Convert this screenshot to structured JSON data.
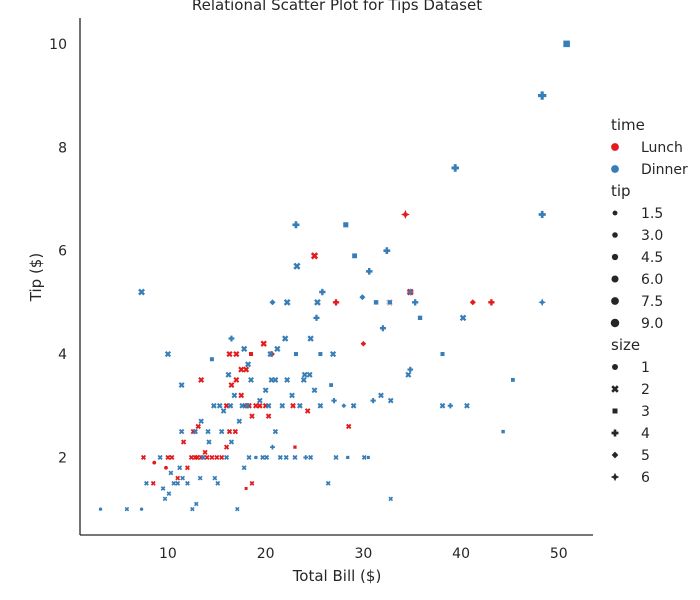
{
  "chart_data": {
    "type": "scatter",
    "title": "Relational Scatter Plot for Tips Dataset",
    "xlabel": "Total Bill ($)",
    "ylabel": "Tip ($)",
    "xlim": [
      1.0,
      53.5
    ],
    "ylim": [
      0.5,
      10.5
    ],
    "x_ticks": [
      10,
      20,
      30,
      40,
      50
    ],
    "y_ticks": [
      2,
      4,
      6,
      8,
      10
    ],
    "grid": false,
    "legend_position": "right",
    "colors": {
      "Lunch": "#e41a1c",
      "Dinner": "#377eb8"
    },
    "legend": {
      "hue_title": "time",
      "hue_entries": [
        "Lunch",
        "Dinner"
      ],
      "size_title": "tip",
      "size_entries": [
        "1.5",
        "3.0",
        "4.5",
        "6.0",
        "7.5",
        "9.0"
      ],
      "style_title": "size",
      "style_entries": [
        "1",
        "2",
        "3",
        "4",
        "5",
        "6"
      ]
    },
    "size_markers": {
      "1": "circle",
      "2": "x",
      "3": "square",
      "4": "plus",
      "5": "diamond",
      "6": "star"
    },
    "series": [
      {
        "name": "Lunch",
        "points": [
          [
            8.5,
            1.5,
            2
          ],
          [
            8.6,
            1.9,
            1
          ],
          [
            9.8,
            1.8,
            1
          ],
          [
            7.5,
            2.0,
            2
          ],
          [
            10.0,
            2.0,
            2
          ],
          [
            10.4,
            2.0,
            2
          ],
          [
            11.0,
            1.6,
            2
          ],
          [
            11.6,
            2.3,
            2
          ],
          [
            12.0,
            1.8,
            2
          ],
          [
            12.4,
            2.0,
            2
          ],
          [
            12.8,
            2.0,
            2
          ],
          [
            13.0,
            2.0,
            2
          ],
          [
            13.4,
            2.0,
            2
          ],
          [
            13.8,
            2.1,
            2
          ],
          [
            14.0,
            2.0,
            2
          ],
          [
            14.5,
            2.0,
            2
          ],
          [
            15.0,
            2.0,
            2
          ],
          [
            15.5,
            2.0,
            2
          ],
          [
            16.0,
            2.2,
            2
          ],
          [
            16.3,
            2.5,
            2
          ],
          [
            16.0,
            3.0,
            2
          ],
          [
            16.5,
            3.4,
            2
          ],
          [
            17.0,
            3.5,
            2
          ],
          [
            17.5,
            3.2,
            2
          ],
          [
            17.9,
            3.0,
            2
          ],
          [
            18.3,
            3.0,
            2
          ],
          [
            18.6,
            2.8,
            2
          ],
          [
            19.0,
            3.0,
            2
          ],
          [
            19.4,
            3.0,
            2
          ],
          [
            20.0,
            3.0,
            2
          ],
          [
            20.3,
            2.8,
            2
          ],
          [
            16.3,
            4.0,
            2
          ],
          [
            17.0,
            4.0,
            2
          ],
          [
            17.5,
            3.7,
            2
          ],
          [
            18.0,
            3.7,
            2
          ],
          [
            18.5,
            4.0,
            3
          ],
          [
            19.8,
            4.2,
            2
          ],
          [
            20.6,
            4.0,
            4
          ],
          [
            13.4,
            3.5,
            2
          ],
          [
            12.6,
            2.5,
            2
          ],
          [
            18.0,
            1.4,
            3
          ],
          [
            18.6,
            1.5,
            2
          ],
          [
            22.8,
            3.0,
            2
          ],
          [
            24.3,
            2.9,
            2
          ],
          [
            23.0,
            2.2,
            3
          ],
          [
            25.0,
            5.9,
            2
          ],
          [
            27.2,
            5.0,
            4
          ],
          [
            28.5,
            2.6,
            2
          ],
          [
            30.0,
            4.2,
            5
          ],
          [
            32.7,
            5.0,
            2
          ],
          [
            34.3,
            6.7,
            6
          ],
          [
            34.8,
            5.2,
            2
          ],
          [
            41.2,
            5.0,
            5
          ],
          [
            43.1,
            5.0,
            4
          ],
          [
            16.9,
            2.5,
            2
          ],
          [
            13.1,
            2.6,
            2
          ]
        ]
      },
      {
        "name": "Dinner",
        "points": [
          [
            3.1,
            1.0,
            1
          ],
          [
            5.8,
            1.0,
            2
          ],
          [
            7.3,
            1.0,
            1
          ],
          [
            7.8,
            1.5,
            2
          ],
          [
            9.5,
            1.4,
            2
          ],
          [
            9.7,
            1.2,
            2
          ],
          [
            10.1,
            1.3,
            2
          ],
          [
            10.3,
            1.7,
            2
          ],
          [
            10.6,
            1.5,
            2
          ],
          [
            11.0,
            1.5,
            2
          ],
          [
            11.2,
            1.8,
            2
          ],
          [
            11.5,
            1.6,
            2
          ],
          [
            12.0,
            1.5,
            2
          ],
          [
            12.5,
            1.0,
            2
          ],
          [
            12.9,
            1.1,
            2
          ],
          [
            13.3,
            1.6,
            2
          ],
          [
            13.6,
            2.0,
            2
          ],
          [
            14.2,
            2.3,
            2
          ],
          [
            14.8,
            1.6,
            2
          ],
          [
            15.1,
            1.5,
            2
          ],
          [
            15.5,
            2.5,
            2
          ],
          [
            16.0,
            2.0,
            2
          ],
          [
            16.5,
            2.3,
            2
          ],
          [
            17.1,
            1.0,
            2
          ],
          [
            17.8,
            1.8,
            2
          ],
          [
            18.3,
            2.0,
            2
          ],
          [
            19.0,
            2.0,
            3
          ],
          [
            19.7,
            2.0,
            2
          ],
          [
            20.1,
            2.0,
            2
          ],
          [
            20.7,
            2.2,
            4
          ],
          [
            21.0,
            2.5,
            2
          ],
          [
            21.5,
            2.0,
            2
          ],
          [
            22.1,
            2.0,
            2
          ],
          [
            23.0,
            2.0,
            2
          ],
          [
            24.1,
            2.0,
            4
          ],
          [
            24.6,
            2.0,
            2
          ],
          [
            26.4,
            1.5,
            2
          ],
          [
            27.2,
            2.0,
            2
          ],
          [
            28.4,
            2.0,
            3
          ],
          [
            30.1,
            2.0,
            2
          ],
          [
            30.5,
            2.0,
            3
          ],
          [
            32.8,
            1.2,
            2
          ],
          [
            9.2,
            2.0,
            2
          ],
          [
            11.4,
            2.5,
            2
          ],
          [
            12.8,
            2.5,
            2
          ],
          [
            13.4,
            2.7,
            2
          ],
          [
            14.1,
            2.5,
            2
          ],
          [
            14.7,
            3.0,
            2
          ],
          [
            15.3,
            3.0,
            2
          ],
          [
            15.7,
            2.9,
            2
          ],
          [
            16.4,
            3.0,
            2
          ],
          [
            16.8,
            3.2,
            2
          ],
          [
            17.3,
            2.7,
            2
          ],
          [
            17.6,
            3.0,
            2
          ],
          [
            18.1,
            3.0,
            2
          ],
          [
            18.5,
            3.5,
            2
          ],
          [
            19.4,
            3.1,
            2
          ],
          [
            20.0,
            3.3,
            2
          ],
          [
            20.3,
            3.0,
            2
          ],
          [
            20.6,
            3.5,
            2
          ],
          [
            21.0,
            3.5,
            2
          ],
          [
            21.7,
            3.0,
            2
          ],
          [
            22.2,
            3.5,
            2
          ],
          [
            22.7,
            3.2,
            2
          ],
          [
            23.5,
            3.0,
            2
          ],
          [
            23.9,
            3.5,
            2
          ],
          [
            24.5,
            3.6,
            2
          ],
          [
            25.0,
            3.3,
            2
          ],
          [
            25.6,
            3.0,
            2
          ],
          [
            26.7,
            3.4,
            3
          ],
          [
            27.0,
            3.1,
            4
          ],
          [
            28.0,
            3.0,
            5
          ],
          [
            29.0,
            3.0,
            2
          ],
          [
            31.0,
            3.1,
            4
          ],
          [
            31.8,
            3.2,
            2
          ],
          [
            32.8,
            3.1,
            2
          ],
          [
            34.6,
            3.6,
            2
          ],
          [
            34.8,
            3.7,
            4
          ],
          [
            38.1,
            3.0,
            2
          ],
          [
            38.9,
            3.0,
            4
          ],
          [
            40.6,
            3.0,
            2
          ],
          [
            44.3,
            2.5,
            3
          ],
          [
            45.3,
            3.5,
            3
          ],
          [
            38.1,
            4.0,
            3
          ],
          [
            14.5,
            3.9,
            3
          ],
          [
            16.2,
            3.6,
            2
          ],
          [
            16.5,
            4.3,
            4
          ],
          [
            17.8,
            4.1,
            2
          ],
          [
            18.2,
            3.8,
            2
          ],
          [
            20.5,
            4.0,
            2
          ],
          [
            21.2,
            4.1,
            2
          ],
          [
            22.0,
            4.3,
            2
          ],
          [
            23.1,
            4.0,
            3
          ],
          [
            24.0,
            3.6,
            2
          ],
          [
            24.6,
            4.3,
            2
          ],
          [
            25.2,
            4.7,
            4
          ],
          [
            25.6,
            4.0,
            3
          ],
          [
            26.9,
            4.0,
            2
          ],
          [
            10.0,
            4.0,
            2
          ],
          [
            11.4,
            3.4,
            2
          ],
          [
            7.3,
            5.2,
            2
          ],
          [
            20.7,
            5.0,
            5
          ],
          [
            22.2,
            5.0,
            2
          ],
          [
            25.3,
            5.0,
            2
          ],
          [
            25.8,
            5.2,
            4
          ],
          [
            29.9,
            5.1,
            5
          ],
          [
            31.3,
            5.0,
            3
          ],
          [
            32.7,
            5.0,
            3
          ],
          [
            34.8,
            5.2,
            6
          ],
          [
            35.3,
            5.0,
            4
          ],
          [
            35.8,
            4.7,
            3
          ],
          [
            32.0,
            4.5,
            4
          ],
          [
            40.2,
            4.7,
            2
          ],
          [
            48.3,
            5.0,
            6
          ],
          [
            23.2,
            5.7,
            2
          ],
          [
            23.1,
            6.5,
            4
          ],
          [
            28.2,
            6.5,
            3
          ],
          [
            29.1,
            5.9,
            3
          ],
          [
            30.6,
            5.6,
            4
          ],
          [
            32.4,
            6.0,
            4
          ],
          [
            39.4,
            7.6,
            4
          ],
          [
            48.3,
            6.7,
            4
          ],
          [
            48.3,
            9.0,
            4
          ],
          [
            50.8,
            10.0,
            3
          ]
        ]
      }
    ]
  }
}
